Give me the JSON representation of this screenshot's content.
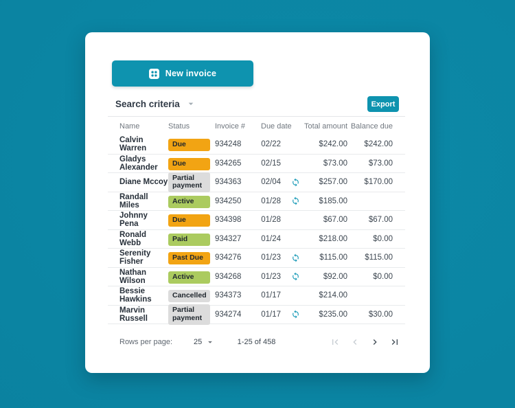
{
  "colors": {
    "background": "#0C8AA8",
    "background_dark": "#0A7F9D",
    "accent": "#0E93AF",
    "status_orange": "#F2A413",
    "status_green": "#ABCB5F",
    "status_gray": "#DCDCDC",
    "sync_icon": "#1096B4"
  },
  "toolbar": {
    "new_invoice_label": "New invoice",
    "search_criteria_label": "Search criteria",
    "export_label": "Export"
  },
  "table": {
    "columns": [
      "Name",
      "Status",
      "Invoice #",
      "Due date",
      "Total amount",
      "Balance due"
    ],
    "rows": [
      {
        "name": "Calvin Warren",
        "status": "Due",
        "status_color": "orange",
        "invoice": "934248",
        "due_date": "02/22",
        "recurring": false,
        "total": "$242.00",
        "balance": "$242.00"
      },
      {
        "name": "Gladys Alexander",
        "status": "Due",
        "status_color": "orange",
        "invoice": "934265",
        "due_date": "02/15",
        "recurring": false,
        "total": "$73.00",
        "balance": "$73.00"
      },
      {
        "name": "Diane Mccoy",
        "status": "Partial payment",
        "status_color": "gray",
        "invoice": "934363",
        "due_date": "02/04",
        "recurring": true,
        "total": "$257.00",
        "balance": "$170.00"
      },
      {
        "name": "Randall Miles",
        "status": "Active",
        "status_color": "green",
        "invoice": "934250",
        "due_date": "01/28",
        "recurring": true,
        "total": "$185.00",
        "balance": ""
      },
      {
        "name": "Johnny Pena",
        "status": "Due",
        "status_color": "orange",
        "invoice": "934398",
        "due_date": "01/28",
        "recurring": false,
        "total": "$67.00",
        "balance": "$67.00"
      },
      {
        "name": "Ronald Webb",
        "status": "Paid",
        "status_color": "green",
        "invoice": "934327",
        "due_date": "01/24",
        "recurring": false,
        "total": "$218.00",
        "balance": "$0.00"
      },
      {
        "name": "Serenity Fisher",
        "status": "Past Due",
        "status_color": "orange",
        "invoice": "934276",
        "due_date": "01/23",
        "recurring": true,
        "total": "$115.00",
        "balance": "$115.00"
      },
      {
        "name": "Nathan Wilson",
        "status": "Active",
        "status_color": "green",
        "invoice": "934268",
        "due_date": "01/23",
        "recurring": true,
        "total": "$92.00",
        "balance": "$0.00"
      },
      {
        "name": "Bessie Hawkins",
        "status": "Cancelled",
        "status_color": "gray",
        "invoice": "934373",
        "due_date": "01/17",
        "recurring": false,
        "total": "$214.00",
        "balance": ""
      },
      {
        "name": "Marvin Russell",
        "status": "Partial payment",
        "status_color": "gray",
        "invoice": "934274",
        "due_date": "01/17",
        "recurring": true,
        "total": "$235.00",
        "balance": "$30.00"
      }
    ]
  },
  "pagination": {
    "rows_per_page_label": "Rows per page:",
    "rows_per_page_value": "25",
    "range_label": "1-25 of 458",
    "first_page_enabled": false,
    "prev_page_enabled": false,
    "next_page_enabled": true,
    "last_page_enabled": true
  }
}
